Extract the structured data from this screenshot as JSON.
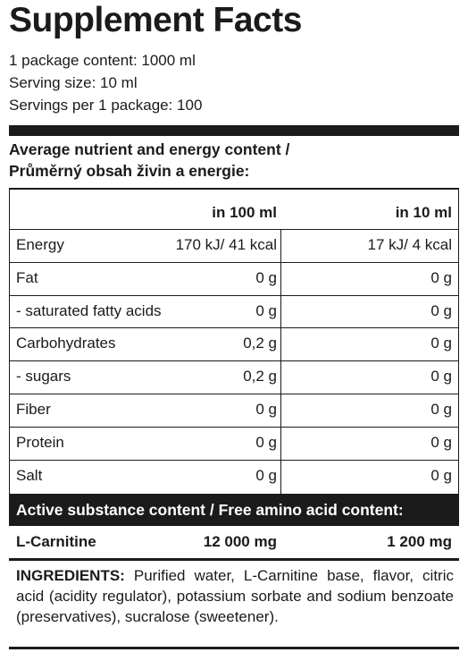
{
  "title": "Supplement Facts",
  "package_content": "1 package content: 1000 ml",
  "serving_size": "Serving size: 10 ml",
  "servings_per_package": "Servings per 1 package: 100",
  "average_heading_line1": "Average nutrient and energy content /",
  "average_heading_line2": "Průměrný obsah živin a energie:",
  "columns": {
    "col1": "",
    "col2": "in 100 ml",
    "col3": "in 10 ml"
  },
  "rows": [
    {
      "name": "Energy",
      "per100": "170 kJ/ 41 kcal",
      "per10": "17 kJ/ 4 kcal"
    },
    {
      "name": "Fat",
      "per100": "0 g",
      "per10": "0 g"
    },
    {
      "name": "- saturated fatty acids",
      "per100": "0 g",
      "per10": "0 g"
    },
    {
      "name": "Carbohydrates",
      "per100": "0,2 g",
      "per10": "0 g"
    },
    {
      "name": "- sugars",
      "per100": "0,2 g",
      "per10": "0 g"
    },
    {
      "name": "Fiber",
      "per100": "0 g",
      "per10": "0 g"
    },
    {
      "name": "Protein",
      "per100": "0 g",
      "per10": "0 g"
    },
    {
      "name": "Salt",
      "per100": "0 g",
      "per10": "0 g"
    }
  ],
  "active_heading": "Active substance content / Free amino acid content:",
  "active_row": {
    "name": "L-Carnitine",
    "per100": "12 000 mg",
    "per10": "1 200 mg"
  },
  "ingredients_label": "INGREDIENTS:",
  "ingredients_text": "Purified water, L-Carnitine base, flavor, citric acid (acidity regulator), potassium sorbate and sodium benzoate (preservatives), sucralose (sweetener)."
}
